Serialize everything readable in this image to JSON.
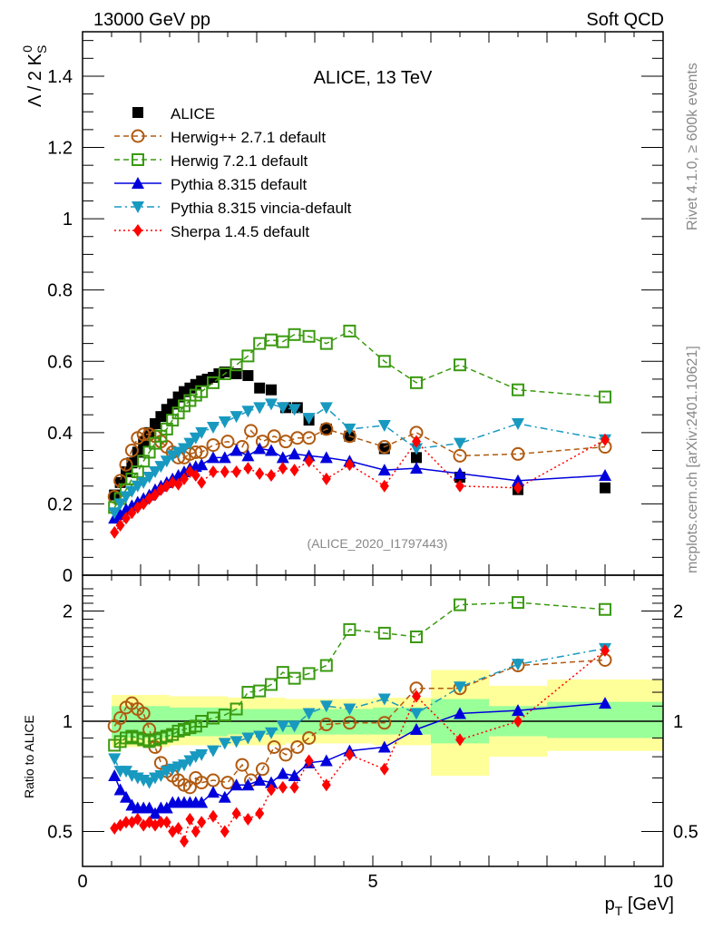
{
  "header": {
    "left": "13000 GeV pp",
    "right": "Soft QCD"
  },
  "side_labels": {
    "rivet": "Rivet 4.1.0, ≥ 600k events",
    "mcplots": "mcplots.cern.ch [arXiv:2401.10621]"
  },
  "chart_data": [
    {
      "type": "scatter",
      "panel": "main",
      "title": "ALICE, 13 TeV",
      "analysis_id": "(ALICE_2020_I1797443)",
      "xlabel": "p_T [GeV]",
      "ylabel": "Λ / 2 K⁰_S",
      "xlim": [
        0,
        10
      ],
      "ylim": [
        0,
        1.52
      ],
      "yticks": [
        "0",
        "0.2",
        "0.4",
        "0.6",
        "0.8",
        "1",
        "1.2",
        "1.4"
      ],
      "legend_position": "top-left",
      "series": [
        {
          "name": "ALICE",
          "color": "#000000",
          "marker": "square-filled",
          "line": "none",
          "x": [
            0.55,
            0.65,
            0.75,
            0.85,
            0.95,
            1.05,
            1.15,
            1.25,
            1.35,
            1.45,
            1.55,
            1.65,
            1.75,
            1.85,
            1.95,
            2.05,
            2.15,
            2.25,
            2.35,
            2.45,
            2.65,
            2.85,
            3.05,
            3.25,
            3.5,
            3.7,
            3.9,
            4.2,
            4.6,
            5.2,
            5.75,
            6.5,
            7.5,
            9.0
          ],
          "y": [
            0.225,
            0.26,
            0.29,
            0.315,
            0.345,
            0.375,
            0.4,
            0.425,
            0.445,
            0.465,
            0.48,
            0.5,
            0.515,
            0.525,
            0.535,
            0.545,
            0.55,
            0.555,
            0.565,
            0.57,
            0.565,
            0.56,
            0.525,
            0.52,
            0.47,
            0.47,
            0.435,
            0.41,
            0.39,
            0.355,
            0.33,
            0.275,
            0.24,
            0.245
          ]
        },
        {
          "name": "Herwig++ 2.7.1 default",
          "color": "#b05a10",
          "marker": "circle-open",
          "line": "dashed",
          "x": [
            0.55,
            0.65,
            0.75,
            0.85,
            0.95,
            1.05,
            1.15,
            1.25,
            1.35,
            1.45,
            1.55,
            1.65,
            1.75,
            1.85,
            1.95,
            2.05,
            2.25,
            2.5,
            2.75,
            2.9,
            3.1,
            3.3,
            3.5,
            3.7,
            3.9,
            4.2,
            4.6,
            5.2,
            5.75,
            6.5,
            7.5,
            9.0
          ],
          "y": [
            0.22,
            0.265,
            0.31,
            0.35,
            0.385,
            0.395,
            0.395,
            0.39,
            0.375,
            0.36,
            0.345,
            0.33,
            0.33,
            0.34,
            0.345,
            0.345,
            0.365,
            0.375,
            0.36,
            0.405,
            0.375,
            0.39,
            0.375,
            0.385,
            0.385,
            0.41,
            0.39,
            0.36,
            0.4,
            0.335,
            0.34,
            0.36
          ]
        },
        {
          "name": "Herwig 7.2.1 default",
          "color": "#3a9a10",
          "marker": "square-open",
          "line": "dashed",
          "x": [
            0.55,
            0.65,
            0.75,
            0.85,
            0.95,
            1.05,
            1.15,
            1.25,
            1.35,
            1.45,
            1.55,
            1.65,
            1.75,
            1.85,
            1.95,
            2.05,
            2.25,
            2.45,
            2.65,
            2.85,
            3.05,
            3.25,
            3.45,
            3.65,
            3.9,
            4.2,
            4.6,
            5.2,
            5.75,
            6.5,
            7.5,
            9.0
          ],
          "y": [
            0.19,
            0.215,
            0.24,
            0.27,
            0.29,
            0.32,
            0.345,
            0.37,
            0.39,
            0.41,
            0.435,
            0.455,
            0.475,
            0.49,
            0.505,
            0.515,
            0.54,
            0.565,
            0.59,
            0.615,
            0.65,
            0.66,
            0.655,
            0.675,
            0.67,
            0.65,
            0.685,
            0.6,
            0.54,
            0.59,
            0.52,
            0.5
          ]
        },
        {
          "name": "Pythia 8.315 default",
          "color": "#0000dd",
          "marker": "triangle-up-filled",
          "line": "solid",
          "x": [
            0.55,
            0.65,
            0.75,
            0.85,
            0.95,
            1.05,
            1.15,
            1.25,
            1.35,
            1.45,
            1.55,
            1.65,
            1.75,
            1.85,
            1.95,
            2.05,
            2.25,
            2.45,
            2.65,
            2.85,
            3.05,
            3.25,
            3.45,
            3.65,
            3.9,
            4.2,
            4.6,
            5.2,
            5.75,
            6.5,
            7.5,
            9.0
          ],
          "y": [
            0.16,
            0.17,
            0.185,
            0.195,
            0.205,
            0.215,
            0.225,
            0.24,
            0.25,
            0.26,
            0.27,
            0.28,
            0.29,
            0.3,
            0.305,
            0.31,
            0.33,
            0.33,
            0.35,
            0.335,
            0.355,
            0.35,
            0.33,
            0.34,
            0.335,
            0.33,
            0.32,
            0.295,
            0.3,
            0.285,
            0.265,
            0.28
          ]
        },
        {
          "name": "Pythia 8.315 vincia-default",
          "color": "#1899c0",
          "marker": "triangle-down-filled",
          "line": "dash-dot",
          "x": [
            0.55,
            0.65,
            0.75,
            0.85,
            0.95,
            1.05,
            1.15,
            1.25,
            1.35,
            1.45,
            1.55,
            1.65,
            1.75,
            1.85,
            1.95,
            2.05,
            2.25,
            2.45,
            2.65,
            2.85,
            3.05,
            3.25,
            3.45,
            3.65,
            3.9,
            4.2,
            4.6,
            5.2,
            5.75,
            6.5,
            7.5,
            9.0
          ],
          "y": [
            0.175,
            0.2,
            0.22,
            0.235,
            0.25,
            0.26,
            0.275,
            0.29,
            0.305,
            0.32,
            0.335,
            0.345,
            0.355,
            0.37,
            0.385,
            0.4,
            0.415,
            0.43,
            0.445,
            0.46,
            0.47,
            0.48,
            0.47,
            0.465,
            0.44,
            0.47,
            0.41,
            0.42,
            0.355,
            0.37,
            0.425,
            0.38
          ]
        },
        {
          "name": "Sherpa 1.4.5 default",
          "color": "#ff0000",
          "marker": "diamond-filled",
          "line": "dotted",
          "x": [
            0.55,
            0.65,
            0.75,
            0.85,
            0.95,
            1.05,
            1.15,
            1.25,
            1.35,
            1.45,
            1.55,
            1.65,
            1.75,
            1.85,
            1.95,
            2.05,
            2.25,
            2.45,
            2.65,
            2.85,
            3.05,
            3.25,
            3.45,
            3.65,
            3.9,
            4.2,
            4.6,
            5.2,
            5.75,
            6.5,
            7.5,
            9.0
          ],
          "y": [
            0.12,
            0.14,
            0.16,
            0.175,
            0.19,
            0.2,
            0.215,
            0.225,
            0.24,
            0.25,
            0.26,
            0.255,
            0.27,
            0.29,
            0.28,
            0.26,
            0.29,
            0.29,
            0.29,
            0.3,
            0.285,
            0.28,
            0.3,
            0.295,
            0.32,
            0.27,
            0.31,
            0.25,
            0.375,
            0.25,
            0.245,
            0.38
          ]
        }
      ]
    },
    {
      "type": "scatter",
      "panel": "ratio",
      "ylabel": "Ratio to ALICE",
      "xlabel": "p_T [GeV]",
      "xlim": [
        0,
        10
      ],
      "ylim": [
        0.4,
        2.35
      ],
      "yscale": "log",
      "yticks": [
        "0.5",
        "1",
        "2"
      ],
      "xticks": [
        "0",
        "5",
        "10"
      ],
      "bands": {
        "inner_color": "#99ff99",
        "outer_color": "#ffff99",
        "bins": [
          {
            "x0": 0.5,
            "x1": 1.5,
            "inner": [
              0.9,
              1.1
            ],
            "outer": [
              0.85,
              1.18
            ]
          },
          {
            "x0": 1.5,
            "x1": 2.5,
            "inner": [
              0.91,
              1.09
            ],
            "outer": [
              0.86,
              1.17
            ]
          },
          {
            "x0": 2.5,
            "x1": 3.5,
            "inner": [
              0.92,
              1.08
            ],
            "outer": [
              0.86,
              1.16
            ]
          },
          {
            "x0": 3.5,
            "x1": 5.0,
            "inner": [
              0.92,
              1.08
            ],
            "outer": [
              0.87,
              1.15
            ]
          },
          {
            "x0": 5.0,
            "x1": 5.6,
            "inner": [
              0.92,
              1.09
            ],
            "outer": [
              0.86,
              1.16
            ]
          },
          {
            "x0": 5.6,
            "x1": 6.0,
            "inner": [
              0.92,
              1.09
            ],
            "outer": [
              0.86,
              1.16
            ]
          },
          {
            "x0": 6.0,
            "x1": 7.0,
            "inner": [
              0.87,
              1.15
            ],
            "outer": [
              0.71,
              1.38
            ]
          },
          {
            "x0": 7.0,
            "x1": 8.0,
            "inner": [
              0.91,
              1.1
            ],
            "outer": [
              0.8,
              1.25
            ]
          },
          {
            "x0": 8.0,
            "x1": 10.0,
            "inner": [
              0.9,
              1.13
            ],
            "outer": [
              0.83,
              1.3
            ]
          }
        ]
      },
      "series": [
        {
          "name": "Herwig++ 2.7.1 default",
          "color": "#b05a10",
          "x": [
            0.55,
            0.65,
            0.75,
            0.85,
            0.95,
            1.05,
            1.15,
            1.25,
            1.35,
            1.45,
            1.55,
            1.65,
            1.75,
            1.85,
            1.95,
            2.05,
            2.25,
            2.5,
            2.75,
            2.9,
            3.1,
            3.3,
            3.5,
            3.7,
            3.9,
            4.2,
            4.6,
            5.2,
            5.75,
            6.5,
            7.5,
            9.0
          ],
          "y": [
            0.97,
            1.02,
            1.09,
            1.12,
            1.08,
            1.05,
            0.95,
            0.85,
            0.77,
            0.73,
            0.71,
            0.69,
            0.67,
            0.66,
            0.7,
            0.68,
            0.69,
            0.68,
            0.76,
            0.69,
            0.74,
            0.85,
            0.81,
            0.85,
            0.9,
            0.98,
            0.99,
            0.99,
            1.23,
            1.23,
            1.42,
            1.47
          ]
        },
        {
          "name": "Herwig 7.2.1 default",
          "color": "#3a9a10",
          "x": [
            0.55,
            0.65,
            0.75,
            0.85,
            0.95,
            1.05,
            1.15,
            1.25,
            1.35,
            1.45,
            1.55,
            1.65,
            1.75,
            1.85,
            1.95,
            2.05,
            2.25,
            2.45,
            2.65,
            2.85,
            3.05,
            3.25,
            3.45,
            3.65,
            3.9,
            4.2,
            4.6,
            5.2,
            5.75,
            6.5,
            7.5,
            9.0
          ],
          "y": [
            0.86,
            0.88,
            0.9,
            0.91,
            0.9,
            0.89,
            0.88,
            0.89,
            0.9,
            0.91,
            0.92,
            0.94,
            0.95,
            0.96,
            0.97,
            1.0,
            1.02,
            1.04,
            1.08,
            1.2,
            1.21,
            1.26,
            1.36,
            1.31,
            1.35,
            1.42,
            1.78,
            1.74,
            1.7,
            2.08,
            2.11,
            2.02
          ]
        },
        {
          "name": "Pythia 8.315 default",
          "color": "#0000dd",
          "x": [
            0.55,
            0.65,
            0.75,
            0.85,
            0.95,
            1.05,
            1.15,
            1.25,
            1.35,
            1.45,
            1.55,
            1.65,
            1.75,
            1.85,
            1.95,
            2.05,
            2.25,
            2.45,
            2.65,
            2.85,
            3.05,
            3.25,
            3.45,
            3.65,
            3.9,
            4.2,
            4.6,
            5.2,
            5.75,
            6.5,
            7.5,
            9.0
          ],
          "y": [
            0.71,
            0.65,
            0.62,
            0.59,
            0.58,
            0.58,
            0.58,
            0.56,
            0.58,
            0.58,
            0.6,
            0.6,
            0.6,
            0.6,
            0.6,
            0.6,
            0.64,
            0.62,
            0.67,
            0.67,
            0.69,
            0.68,
            0.72,
            0.71,
            0.77,
            0.78,
            0.83,
            0.85,
            0.95,
            1.05,
            1.07,
            1.12
          ]
        },
        {
          "name": "Pythia 8.315 vincia-default",
          "color": "#1899c0",
          "x": [
            0.55,
            0.65,
            0.75,
            0.85,
            0.95,
            1.05,
            1.15,
            1.25,
            1.35,
            1.45,
            1.55,
            1.65,
            1.75,
            1.85,
            1.95,
            2.05,
            2.25,
            2.45,
            2.65,
            2.85,
            3.05,
            3.25,
            3.45,
            3.65,
            3.9,
            4.2,
            4.6,
            5.2,
            5.75,
            6.5,
            7.5,
            9.0
          ],
          "y": [
            0.79,
            0.73,
            0.73,
            0.71,
            0.7,
            0.69,
            0.68,
            0.7,
            0.71,
            0.73,
            0.74,
            0.75,
            0.76,
            0.78,
            0.8,
            0.81,
            0.83,
            0.87,
            0.88,
            0.9,
            0.91,
            0.93,
            0.97,
            0.97,
            1.05,
            1.1,
            1.08,
            1.15,
            1.05,
            1.24,
            1.43,
            1.58
          ]
        },
        {
          "name": "Sherpa 1.4.5 default",
          "color": "#ff0000",
          "x": [
            0.55,
            0.65,
            0.75,
            0.85,
            0.95,
            1.05,
            1.15,
            1.25,
            1.35,
            1.45,
            1.55,
            1.65,
            1.75,
            1.85,
            1.95,
            2.05,
            2.25,
            2.45,
            2.65,
            2.85,
            3.05,
            3.25,
            3.45,
            3.65,
            3.9,
            4.2,
            4.6,
            5.2,
            5.75,
            6.5,
            7.5,
            9.0
          ],
          "y": [
            0.51,
            0.52,
            0.53,
            0.53,
            0.54,
            0.52,
            0.53,
            0.52,
            0.53,
            0.53,
            0.5,
            0.51,
            0.47,
            0.54,
            0.5,
            0.53,
            0.55,
            0.5,
            0.56,
            0.54,
            0.56,
            0.65,
            0.66,
            0.66,
            0.78,
            0.67,
            0.81,
            0.74,
            1.17,
            0.89,
            1.0,
            1.56
          ]
        }
      ]
    }
  ]
}
